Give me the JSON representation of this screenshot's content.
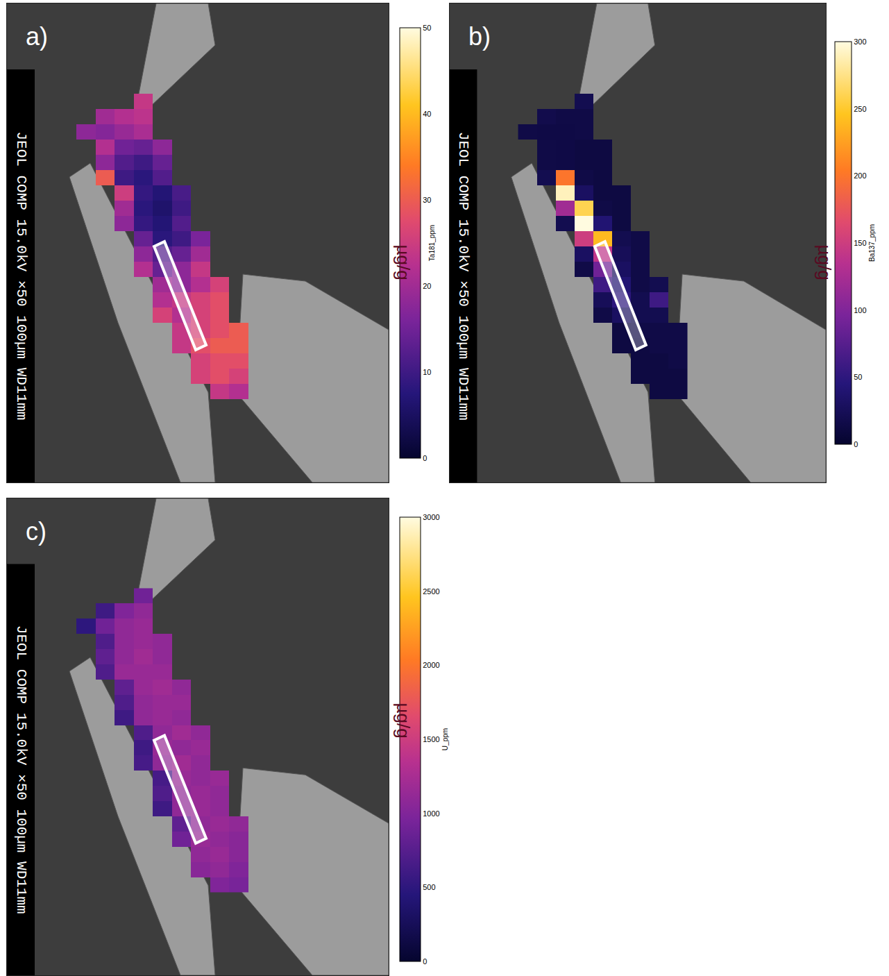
{
  "chart_data": [
    {
      "type": "heatmap",
      "title": "a)",
      "sem_label": "JEOL COMP 15.0kV ×50 100µm WD11mm",
      "xlim": [
        0,
        550
      ],
      "ylim": [
        690,
        0
      ],
      "tick_labels": false,
      "x": [
        113.75,
        141.25,
        168.75,
        196.25,
        223.75,
        251.25,
        278.75,
        306.25,
        333.75
      ],
      "y": [
        141,
        163,
        185,
        207,
        229,
        251,
        273,
        295,
        317,
        339,
        361,
        383,
        405,
        427,
        449,
        471,
        493,
        515,
        537,
        559
      ],
      "z": [
        [
          null,
          null,
          null,
          24,
          null,
          null,
          null,
          null,
          null
        ],
        [
          null,
          20,
          22,
          23,
          null,
          null,
          null,
          null,
          null
        ],
        [
          18,
          17,
          19,
          21,
          null,
          null,
          null,
          null,
          null
        ],
        [
          null,
          22,
          15,
          14,
          18,
          null,
          null,
          null,
          null
        ],
        [
          null,
          18,
          12,
          10,
          14,
          null,
          null,
          null,
          null
        ],
        [
          null,
          30,
          10,
          8,
          12,
          null,
          null,
          null,
          null
        ],
        [
          null,
          null,
          25,
          9,
          7,
          11,
          null,
          null,
          null
        ],
        [
          null,
          null,
          20,
          8,
          6,
          10,
          null,
          null,
          null
        ],
        [
          null,
          null,
          18,
          9,
          7,
          12,
          null,
          null,
          null
        ],
        [
          null,
          null,
          null,
          14,
          8,
          10,
          16,
          null,
          null
        ],
        [
          null,
          null,
          null,
          18,
          12,
          14,
          20,
          null,
          null
        ],
        [
          null,
          null,
          null,
          22,
          14,
          18,
          24,
          null,
          null
        ],
        [
          null,
          null,
          null,
          null,
          20,
          18,
          22,
          26,
          null
        ],
        [
          null,
          null,
          null,
          null,
          22,
          24,
          26,
          28,
          null
        ],
        [
          null,
          null,
          null,
          null,
          26,
          22,
          26,
          28,
          null
        ],
        [
          null,
          null,
          null,
          null,
          null,
          24,
          26,
          28,
          30
        ],
        [
          null,
          null,
          null,
          null,
          null,
          24,
          28,
          30,
          30
        ],
        [
          null,
          null,
          null,
          null,
          null,
          null,
          26,
          28,
          28
        ],
        [
          null,
          null,
          null,
          null,
          null,
          null,
          26,
          28,
          26
        ],
        [
          null,
          null,
          null,
          null,
          null,
          null,
          null,
          24,
          22
        ]
      ],
      "colorbar": {
        "range": [
          0,
          50
        ],
        "ticks": [
          0,
          10,
          20,
          30,
          40,
          50
        ],
        "title": "µg/g",
        "label": "Ta181_ppm"
      },
      "transect": {
        "x": [
          212,
          227,
          287,
          272
        ],
        "y": [
          350,
          343,
          492,
          499
        ]
      }
    },
    {
      "type": "heatmap",
      "title": "b)",
      "sem_label": "JEOL COMP 15.0kV ×50 100µm WD11mm",
      "xlim": [
        0,
        550
      ],
      "ylim": [
        690,
        0
      ],
      "tick_labels": false,
      "x": [
        113.75,
        141.25,
        168.75,
        196.25,
        223.75,
        251.25,
        278.75,
        306.25,
        333.75
      ],
      "y": [
        141,
        163,
        185,
        207,
        229,
        251,
        273,
        295,
        317,
        339,
        361,
        383,
        405,
        427,
        449,
        471,
        493,
        515,
        537,
        559
      ],
      "z": [
        [
          null,
          null,
          null,
          20,
          null,
          null,
          null,
          null,
          null
        ],
        [
          null,
          18,
          15,
          15,
          null,
          null,
          null,
          null,
          null
        ],
        [
          15,
          14,
          14,
          15,
          null,
          null,
          null,
          null,
          null
        ],
        [
          null,
          15,
          14,
          12,
          12,
          null,
          null,
          null,
          null
        ],
        [
          null,
          15,
          14,
          12,
          12,
          null,
          null,
          null,
          null
        ],
        [
          null,
          20,
          200,
          15,
          12,
          null,
          null,
          null,
          null
        ],
        [
          null,
          null,
          290,
          30,
          12,
          12,
          null,
          null,
          null
        ],
        [
          null,
          null,
          120,
          260,
          15,
          12,
          null,
          null,
          null
        ],
        [
          null,
          null,
          20,
          300,
          40,
          12,
          null,
          null,
          null
        ],
        [
          null,
          null,
          null,
          150,
          240,
          20,
          15,
          null,
          null
        ],
        [
          null,
          null,
          null,
          30,
          140,
          25,
          15,
          null,
          null
        ],
        [
          null,
          null,
          null,
          15,
          90,
          30,
          15,
          null,
          null
        ],
        [
          null,
          null,
          null,
          null,
          60,
          40,
          15,
          20,
          null
        ],
        [
          null,
          null,
          null,
          null,
          25,
          50,
          20,
          60,
          null
        ],
        [
          null,
          null,
          null,
          null,
          15,
          30,
          20,
          20,
          null
        ],
        [
          null,
          null,
          null,
          null,
          null,
          12,
          15,
          15,
          15
        ],
        [
          null,
          null,
          null,
          null,
          null,
          12,
          12,
          15,
          15
        ],
        [
          null,
          null,
          null,
          null,
          null,
          null,
          12,
          12,
          15
        ],
        [
          null,
          null,
          null,
          null,
          null,
          null,
          12,
          12,
          12
        ],
        [
          null,
          null,
          null,
          null,
          null,
          null,
          null,
          12,
          12
        ]
      ],
      "colorbar": {
        "range": [
          0,
          300
        ],
        "ticks": [
          0,
          50,
          100,
          150,
          200,
          250,
          300
        ],
        "title": "µg/g",
        "label": "Ba137_ppm"
      },
      "transect": {
        "x": [
          212,
          227,
          287,
          272
        ],
        "y": [
          350,
          343,
          492,
          499
        ]
      }
    },
    {
      "type": "heatmap",
      "title": "c)",
      "sem_label": "JEOL COMP 15.0kV ×50 100µm WD11mm",
      "xlim": [
        0,
        550
      ],
      "ylim": [
        690,
        0
      ],
      "tick_labels": false,
      "x": [
        113.75,
        141.25,
        168.75,
        196.25,
        223.75,
        251.25,
        278.75,
        306.25,
        333.75
      ],
      "y": [
        141,
        163,
        185,
        207,
        229,
        251,
        273,
        295,
        317,
        339,
        361,
        383,
        405,
        427,
        449,
        471,
        493,
        515,
        537,
        559
      ],
      "z": [
        [
          null,
          null,
          null,
          900,
          null,
          null,
          null,
          null,
          null
        ],
        [
          null,
          600,
          1000,
          1100,
          null,
          null,
          null,
          null,
          null
        ],
        [
          500,
          900,
          1100,
          1150,
          null,
          null,
          null,
          null,
          null
        ],
        [
          null,
          700,
          1100,
          1150,
          1100,
          null,
          null,
          null,
          null
        ],
        [
          null,
          800,
          1100,
          1200,
          1100,
          null,
          null,
          null,
          null
        ],
        [
          null,
          700,
          1150,
          1150,
          1150,
          null,
          null,
          null,
          null
        ],
        [
          null,
          null,
          800,
          1150,
          1200,
          1100,
          null,
          null,
          null
        ],
        [
          null,
          null,
          700,
          1100,
          1150,
          1150,
          null,
          null,
          null
        ],
        [
          null,
          null,
          600,
          1100,
          1150,
          1100,
          null,
          null,
          null
        ],
        [
          null,
          null,
          null,
          700,
          1100,
          1200,
          1100,
          null,
          null
        ],
        [
          null,
          null,
          null,
          600,
          1150,
          1100,
          1150,
          null,
          null
        ],
        [
          null,
          null,
          null,
          650,
          1100,
          1200,
          1100,
          null,
          null
        ],
        [
          null,
          null,
          null,
          null,
          650,
          1150,
          1100,
          1150,
          null
        ],
        [
          null,
          null,
          null,
          null,
          700,
          1100,
          1150,
          1100,
          null
        ],
        [
          null,
          null,
          null,
          null,
          600,
          1100,
          1150,
          1100,
          null
        ],
        [
          null,
          null,
          null,
          null,
          null,
          800,
          1100,
          1150,
          1100
        ],
        [
          null,
          null,
          null,
          null,
          null,
          900,
          1150,
          1100,
          1050
        ],
        [
          null,
          null,
          null,
          null,
          null,
          null,
          1100,
          1150,
          1050
        ],
        [
          null,
          null,
          null,
          null,
          null,
          null,
          1050,
          1100,
          1000
        ],
        [
          null,
          null,
          null,
          null,
          null,
          null,
          null,
          1000,
          950
        ]
      ],
      "colorbar": {
        "range": [
          0,
          3000
        ],
        "ticks": [
          0,
          500,
          1000,
          1500,
          2000,
          2500,
          3000
        ],
        "title": "µg/g",
        "label": "U_ppm"
      },
      "transect": {
        "x": [
          212,
          227,
          287,
          272
        ],
        "y": [
          350,
          343,
          492,
          499
        ]
      }
    }
  ]
}
